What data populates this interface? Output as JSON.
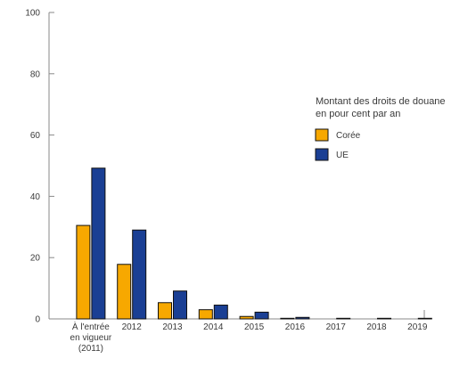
{
  "chart_data": {
    "type": "bar",
    "title": "",
    "xlabel": "",
    "ylabel": "",
    "ylim": [
      0,
      100
    ],
    "yticks": [
      0,
      20,
      40,
      60,
      80,
      100
    ],
    "categories": [
      [
        "À l'entrée",
        "en vigueur",
        "(2011)"
      ],
      [
        "2012"
      ],
      [
        "2013"
      ],
      [
        "2014"
      ],
      [
        "2015"
      ],
      [
        "2016"
      ],
      [
        "2017"
      ],
      [
        "2018"
      ],
      [
        "2019"
      ]
    ],
    "series": [
      {
        "name": "Corée",
        "color": "#f7a800",
        "values": [
          30.5,
          17.8,
          5.3,
          3.0,
          0.8,
          0.2,
          0,
          0,
          0
        ]
      },
      {
        "name": "UE",
        "color": "#1a3f94",
        "values": [
          49.2,
          29.0,
          9.1,
          4.5,
          2.2,
          0.5,
          0.2,
          0.2,
          0.2
        ]
      }
    ],
    "legend": {
      "title_lines": [
        "Montant des droits de douane",
        "en pour cent par an"
      ],
      "placement": "right"
    },
    "grid": false
  }
}
